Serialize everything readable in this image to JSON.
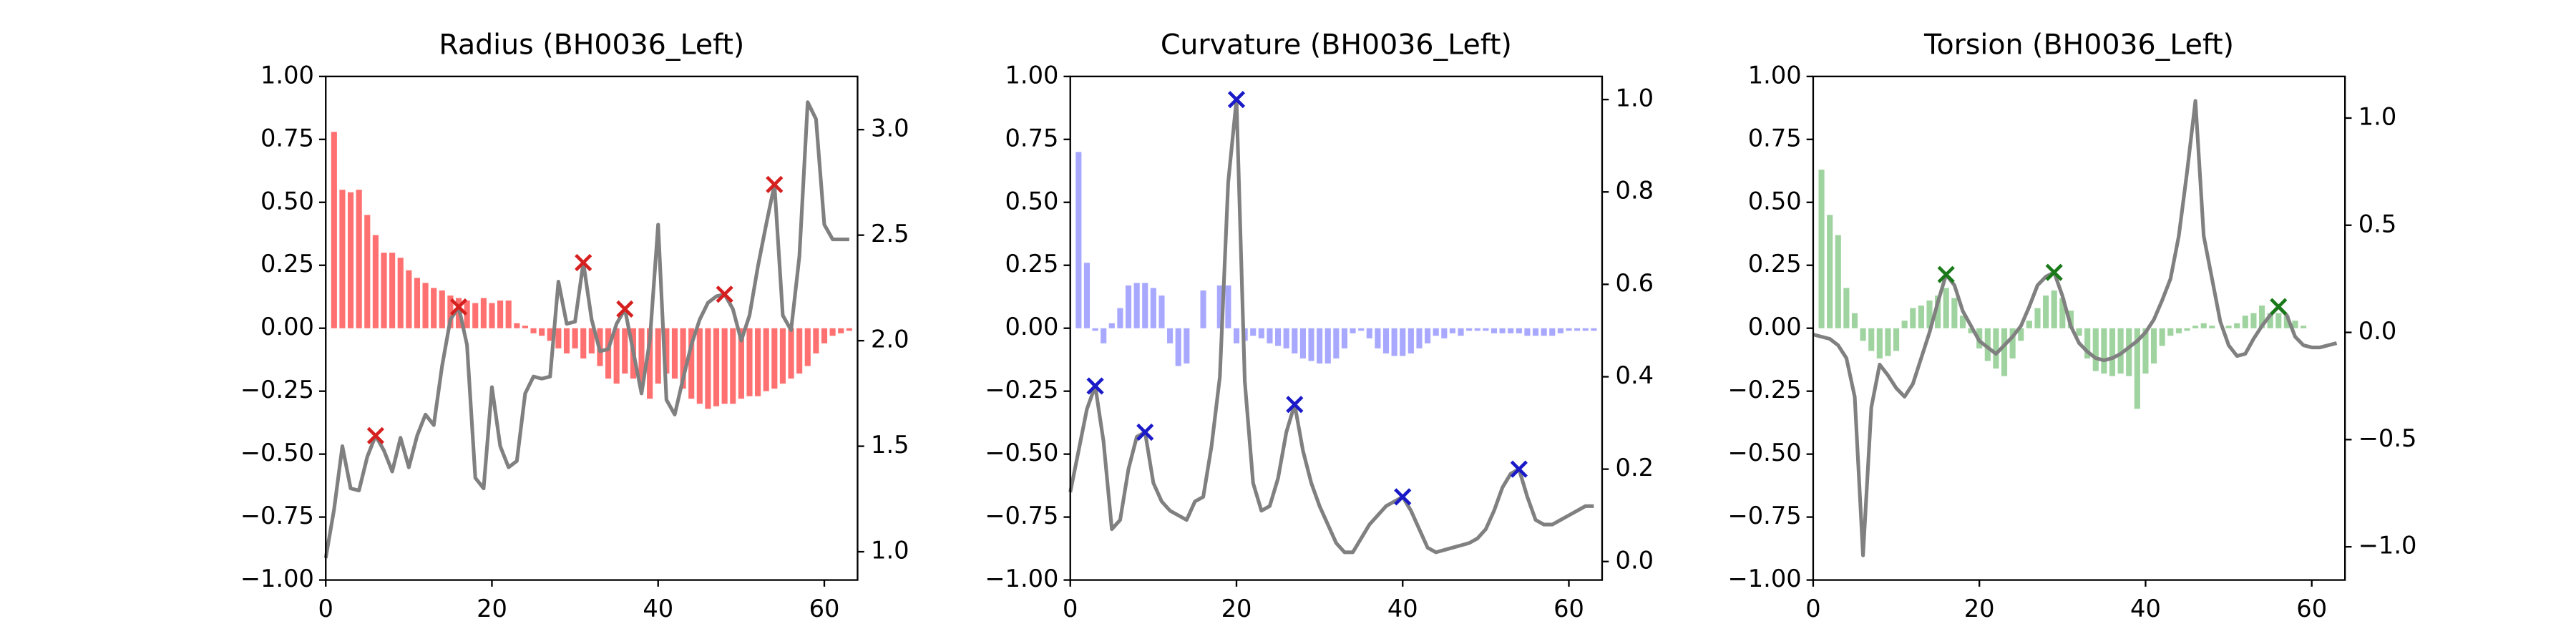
{
  "chart_data": [
    {
      "type": "combo",
      "title": "Radius (BH0036_Left)",
      "x": [
        0,
        1,
        2,
        3,
        4,
        5,
        6,
        7,
        8,
        9,
        10,
        11,
        12,
        13,
        14,
        15,
        16,
        17,
        18,
        19,
        20,
        21,
        22,
        23,
        24,
        25,
        26,
        27,
        28,
        29,
        30,
        31,
        32,
        33,
        34,
        35,
        36,
        37,
        38,
        39,
        40,
        41,
        42,
        43,
        44,
        45,
        46,
        47,
        48,
        49,
        50,
        51,
        52,
        53,
        54,
        55,
        56,
        57,
        58,
        59,
        60,
        61,
        62,
        63
      ],
      "xlim": [
        0,
        64
      ],
      "xticks": [
        0,
        20,
        40,
        60
      ],
      "ylim": [
        -1,
        1
      ],
      "yticks": [
        {
          "value": -1,
          "label": "−1.00"
        },
        {
          "value": -0.75,
          "label": "−0.75"
        },
        {
          "value": -0.5,
          "label": "−0.50"
        },
        {
          "value": -0.25,
          "label": "−0.25"
        },
        {
          "value": 0,
          "label": "0.00"
        },
        {
          "value": 0.25,
          "label": "0.25"
        },
        {
          "value": 0.5,
          "label": "0.50"
        },
        {
          "value": 0.75,
          "label": "0.75"
        },
        {
          "value": 1,
          "label": "1.00"
        }
      ],
      "y2lim": [
        0.866,
        3.252
      ],
      "y2ticks": [
        {
          "value": 1,
          "label": "1.0"
        },
        {
          "value": 1.5,
          "label": "1.5"
        },
        {
          "value": 2,
          "label": "2.0"
        },
        {
          "value": 2.5,
          "label": "2.5"
        },
        {
          "value": 3,
          "label": "3.0"
        }
      ],
      "series": [
        {
          "type": "bar",
          "color": "#ff7070",
          "values": [
            0,
            0.78,
            0.55,
            0.54,
            0.55,
            0.45,
            0.37,
            0.3,
            0.3,
            0.28,
            0.23,
            0.2,
            0.18,
            0.16,
            0.15,
            0.13,
            0.12,
            0.11,
            0.1,
            0.12,
            0.1,
            0.11,
            0.11,
            0.02,
            0.01,
            -0.02,
            -0.03,
            -0.05,
            -0.08,
            -0.1,
            -0.08,
            -0.12,
            -0.1,
            -0.15,
            -0.2,
            -0.22,
            -0.18,
            -0.2,
            -0.22,
            -0.28,
            -0.22,
            -0.18,
            -0.2,
            -0.24,
            -0.28,
            -0.3,
            -0.32,
            -0.31,
            -0.3,
            -0.3,
            -0.28,
            -0.27,
            -0.27,
            -0.25,
            -0.24,
            -0.22,
            -0.2,
            -0.18,
            -0.15,
            -0.1,
            -0.06,
            -0.03,
            -0.02,
            -0.01
          ]
        },
        {
          "type": "line",
          "axis": "y2",
          "color": "#808080",
          "values": [
            0.97,
            1.2,
            1.5,
            1.3,
            1.29,
            1.45,
            1.55,
            1.48,
            1.38,
            1.54,
            1.4,
            1.55,
            1.65,
            1.6,
            1.88,
            2.1,
            2.16,
            1.98,
            1.35,
            1.3,
            1.78,
            1.5,
            1.4,
            1.43,
            1.75,
            1.83,
            1.82,
            1.83,
            2.28,
            2.08,
            2.09,
            2.37,
            2.1,
            1.95,
            1.96,
            2.08,
            2.15,
            1.95,
            1.75,
            2.0,
            2.55,
            1.72,
            1.65,
            1.82,
            1.98,
            2.1,
            2.18,
            2.21,
            2.22,
            2.15,
            2.0,
            2.12,
            2.35,
            2.55,
            2.74,
            2.12,
            2.05,
            2.4,
            3.13,
            3.05,
            2.55,
            2.48,
            2.48,
            2.48
          ]
        },
        {
          "type": "scatter",
          "marker": "x",
          "axis": "y2",
          "color": "#d62020",
          "x": [
            6,
            16,
            31,
            36,
            48,
            54
          ],
          "values": [
            1.55,
            2.16,
            2.37,
            2.15,
            2.22,
            2.74
          ]
        }
      ]
    },
    {
      "type": "combo",
      "title": "Curvature (BH0036_Left)",
      "x": [
        0,
        1,
        2,
        3,
        4,
        5,
        6,
        7,
        8,
        9,
        10,
        11,
        12,
        13,
        14,
        15,
        16,
        17,
        18,
        19,
        20,
        21,
        22,
        23,
        24,
        25,
        26,
        27,
        28,
        29,
        30,
        31,
        32,
        33,
        34,
        35,
        36,
        37,
        38,
        39,
        40,
        41,
        42,
        43,
        44,
        45,
        46,
        47,
        48,
        49,
        50,
        51,
        52,
        53,
        54,
        55,
        56,
        57,
        58,
        59,
        60,
        61,
        62,
        63
      ],
      "xlim": [
        0,
        64
      ],
      "xticks": [
        0,
        20,
        40,
        60
      ],
      "ylim": [
        -1,
        1
      ],
      "yticks": [
        {
          "value": -1,
          "label": "−1.00"
        },
        {
          "value": -0.75,
          "label": "−0.75"
        },
        {
          "value": -0.5,
          "label": "−0.50"
        },
        {
          "value": -0.25,
          "label": "−0.25"
        },
        {
          "value": 0,
          "label": "0.00"
        },
        {
          "value": 0.25,
          "label": "0.25"
        },
        {
          "value": 0.5,
          "label": "0.50"
        },
        {
          "value": 0.75,
          "label": "0.75"
        },
        {
          "value": 1,
          "label": "1.00"
        }
      ],
      "y2lim": [
        -0.04,
        1.05
      ],
      "y2ticks": [
        {
          "value": 0,
          "label": "0.0"
        },
        {
          "value": 0.2,
          "label": "0.2"
        },
        {
          "value": 0.4,
          "label": "0.4"
        },
        {
          "value": 0.6,
          "label": "0.6"
        },
        {
          "value": 0.8,
          "label": "0.8"
        },
        {
          "value": 1,
          "label": "1.0"
        }
      ],
      "series": [
        {
          "type": "bar",
          "color": "#a8a8ff",
          "values": [
            0,
            0.7,
            0.26,
            -0.01,
            -0.06,
            0.02,
            0.08,
            0.17,
            0.18,
            0.18,
            0.16,
            0.13,
            -0.06,
            -0.15,
            -0.14,
            0,
            0.15,
            0,
            0.17,
            0.17,
            -0.06,
            -0.05,
            -0.03,
            -0.04,
            -0.06,
            -0.07,
            -0.08,
            -0.1,
            -0.12,
            -0.13,
            -0.14,
            -0.14,
            -0.12,
            -0.08,
            -0.02,
            -0.01,
            -0.04,
            -0.08,
            -0.1,
            -0.11,
            -0.11,
            -0.1,
            -0.08,
            -0.06,
            -0.03,
            -0.04,
            -0.02,
            -0.03,
            -0.01,
            -0.01,
            -0.01,
            -0.02,
            -0.02,
            -0.02,
            -0.02,
            -0.03,
            -0.03,
            -0.03,
            -0.03,
            -0.02,
            -0.01,
            -0.01,
            -0.01,
            -0.01
          ]
        },
        {
          "type": "line",
          "axis": "y2",
          "color": "#808080",
          "values": [
            0.15,
            0.24,
            0.33,
            0.38,
            0.26,
            0.07,
            0.09,
            0.2,
            0.27,
            0.28,
            0.17,
            0.13,
            0.11,
            0.1,
            0.09,
            0.13,
            0.14,
            0.25,
            0.4,
            0.82,
            1.0,
            0.39,
            0.17,
            0.11,
            0.12,
            0.18,
            0.28,
            0.34,
            0.24,
            0.17,
            0.12,
            0.08,
            0.04,
            0.02,
            0.02,
            0.05,
            0.08,
            0.1,
            0.12,
            0.13,
            0.14,
            0.11,
            0.07,
            0.03,
            0.02,
            0.025,
            0.03,
            0.035,
            0.04,
            0.05,
            0.07,
            0.11,
            0.16,
            0.19,
            0.2,
            0.14,
            0.09,
            0.08,
            0.08,
            0.09,
            0.1,
            0.11,
            0.12,
            0.12
          ]
        },
        {
          "type": "scatter",
          "marker": "x",
          "axis": "y2",
          "color": "#1a1ac8",
          "x": [
            3,
            9,
            20,
            27,
            40,
            54
          ],
          "values": [
            0.38,
            0.28,
            1.0,
            0.34,
            0.14,
            0.2
          ]
        }
      ]
    },
    {
      "type": "combo",
      "title": "Torsion (BH0036_Left)",
      "x": [
        0,
        1,
        2,
        3,
        4,
        5,
        6,
        7,
        8,
        9,
        10,
        11,
        12,
        13,
        14,
        15,
        16,
        17,
        18,
        19,
        20,
        21,
        22,
        23,
        24,
        25,
        26,
        27,
        28,
        29,
        30,
        31,
        32,
        33,
        34,
        35,
        36,
        37,
        38,
        39,
        40,
        41,
        42,
        43,
        44,
        45,
        46,
        47,
        48,
        49,
        50,
        51,
        52,
        53,
        54,
        55,
        56,
        57,
        58,
        59,
        60,
        61,
        62,
        63
      ],
      "xlim": [
        0,
        64
      ],
      "xticks": [
        0,
        20,
        40,
        60
      ],
      "ylim": [
        -1,
        1
      ],
      "yticks": [
        {
          "value": -1,
          "label": "−1.00"
        },
        {
          "value": -0.75,
          "label": "−0.75"
        },
        {
          "value": -0.5,
          "label": "−0.50"
        },
        {
          "value": -0.25,
          "label": "−0.25"
        },
        {
          "value": 0,
          "label": "0.00"
        },
        {
          "value": 0.25,
          "label": "0.25"
        },
        {
          "value": 0.5,
          "label": "0.50"
        },
        {
          "value": 0.75,
          "label": "0.75"
        },
        {
          "value": 1,
          "label": "1.00"
        }
      ],
      "y2lim": [
        -1.155,
        1.194
      ],
      "y2ticks": [
        {
          "value": -1,
          "label": "−1.0"
        },
        {
          "value": -0.5,
          "label": "−0.5"
        },
        {
          "value": 0,
          "label": "0.0"
        },
        {
          "value": 0.5,
          "label": "0.5"
        },
        {
          "value": 1,
          "label": "1.0"
        }
      ],
      "series": [
        {
          "type": "bar",
          "color": "#9fd39f",
          "values": [
            0,
            0.63,
            0.45,
            0.37,
            0.16,
            0.06,
            -0.05,
            -0.09,
            -0.12,
            -0.11,
            -0.09,
            0.03,
            0.08,
            0.09,
            0.11,
            0.13,
            0.16,
            0.12,
            0.05,
            -0.02,
            -0.08,
            -0.13,
            -0.16,
            -0.19,
            -0.12,
            -0.05,
            0.03,
            0.08,
            0.13,
            0.15,
            0.12,
            0.07,
            -0.03,
            -0.12,
            -0.17,
            -0.18,
            -0.19,
            -0.18,
            -0.19,
            -0.32,
            -0.18,
            -0.14,
            -0.07,
            -0.03,
            -0.02,
            -0.01,
            0.01,
            0.02,
            0.01,
            0,
            0.01,
            0.02,
            0.05,
            0.06,
            0.09,
            0.06,
            0.06,
            0.05,
            0.03,
            0.01,
            0,
            0,
            0,
            0
          ]
        },
        {
          "type": "line",
          "axis": "y2",
          "color": "#808080",
          "values": [
            -0.01,
            -0.02,
            -0.03,
            -0.06,
            -0.12,
            -0.3,
            -1.04,
            -0.35,
            -0.15,
            -0.2,
            -0.26,
            -0.3,
            -0.24,
            -0.12,
            0.0,
            0.14,
            0.27,
            0.22,
            0.1,
            0.03,
            -0.04,
            -0.07,
            -0.1,
            -0.06,
            -0.02,
            0.03,
            0.12,
            0.22,
            0.26,
            0.28,
            0.17,
            0.03,
            -0.05,
            -0.09,
            -0.12,
            -0.13,
            -0.12,
            -0.1,
            -0.07,
            -0.04,
            0.0,
            0.06,
            0.15,
            0.25,
            0.45,
            0.75,
            1.08,
            0.45,
            0.25,
            0.05,
            -0.06,
            -0.11,
            -0.1,
            -0.03,
            0.03,
            0.08,
            0.12,
            0.08,
            -0.02,
            -0.06,
            -0.07,
            -0.07,
            -0.06,
            -0.05
          ]
        },
        {
          "type": "scatter",
          "marker": "x",
          "axis": "y2",
          "color": "#1a7a1a",
          "x": [
            16,
            29,
            56
          ],
          "values": [
            0.27,
            0.28,
            0.12
          ]
        }
      ]
    }
  ]
}
